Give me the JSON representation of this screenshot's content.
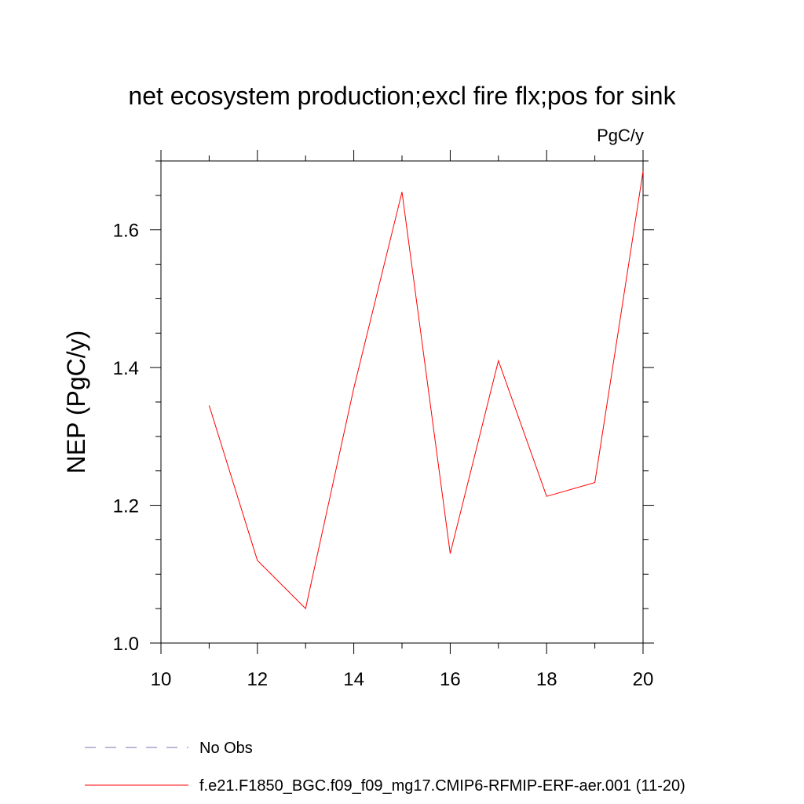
{
  "chart_data": {
    "type": "line",
    "title": "net ecosystem production;excl fire flx;pos for sink",
    "units_label": "PgC/y",
    "xlabel": "",
    "ylabel": "NEP  (PgC/y)",
    "xlim": [
      10,
      20
    ],
    "ylim": [
      1.0,
      1.7
    ],
    "x_ticks": [
      10,
      12,
      14,
      16,
      18,
      20
    ],
    "x_tick_labels": [
      "10",
      "12",
      "14",
      "16",
      "18",
      "20"
    ],
    "y_ticks": [
      1.0,
      1.2,
      1.4,
      1.6
    ],
    "y_tick_labels": [
      "1.0",
      "1.2",
      "1.4",
      "1.6"
    ],
    "grid": false,
    "legend_placement": "bottom",
    "series": [
      {
        "name": "No Obs",
        "color": "#7b6fb0",
        "style": "dashed",
        "x": [],
        "y": []
      },
      {
        "name": "f.e21.F1850_BGC.f09_f09_mg17.CMIP6-RFMIP-ERF-aer.001 (11-20)",
        "color": "#ff0000",
        "style": "solid",
        "x": [
          11,
          12,
          13,
          14,
          15,
          16,
          17,
          18,
          19,
          20
        ],
        "y": [
          1.345,
          1.12,
          1.05,
          1.37,
          1.655,
          1.13,
          1.41,
          1.213,
          1.233,
          1.685
        ]
      }
    ]
  }
}
